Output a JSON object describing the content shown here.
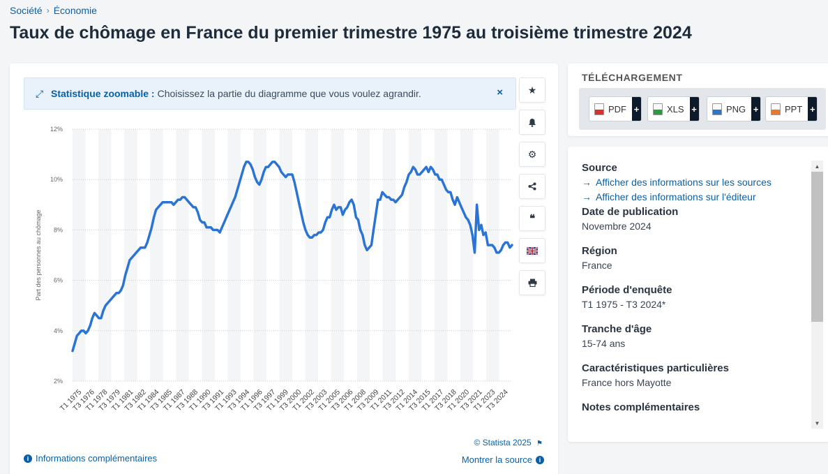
{
  "breadcrumb": [
    "Société",
    "Économie"
  ],
  "title": "Taux de chômage en France du premier trimestre 1975 au troisième trimestre 2024",
  "zoom_banner": {
    "title": "Statistique zoomable :",
    "text": "Choisissez la partie du diagramme que vous voulez agrandir.",
    "close": "×"
  },
  "toolbar": [
    {
      "name": "favorite-button",
      "icon": "star-icon",
      "glyph": "★"
    },
    {
      "name": "notification-button",
      "icon": "bell-icon",
      "glyph": "🔔"
    },
    {
      "name": "settings-button",
      "icon": "gear-icon",
      "glyph": "⚙"
    },
    {
      "name": "share-button",
      "icon": "share-icon",
      "glyph": "share"
    },
    {
      "name": "cite-button",
      "icon": "quote-icon",
      "glyph": "❝"
    },
    {
      "name": "language-button",
      "icon": "uk-flag-icon",
      "glyph": "flag"
    },
    {
      "name": "print-button",
      "icon": "printer-icon",
      "glyph": "⎙"
    }
  ],
  "chart_data": {
    "type": "line",
    "title": "",
    "xlabel": "",
    "ylabel": "Part des personnes au chômage",
    "ylim": [
      2,
      12
    ],
    "yticks": [
      "2%",
      "4%",
      "6%",
      "8%",
      "10%",
      "12%"
    ],
    "grid": true,
    "color": "#2b74d4",
    "x_tick_labels": [
      "T1 1975",
      "T3 1976",
      "T1 1978",
      "T3 1979",
      "T1 1981",
      "T3 1982",
      "T1 1984",
      "T3 1985",
      "T1 1987",
      "T3 1988",
      "T1 1990",
      "T3 1991",
      "T1 1993",
      "T3 1994",
      "T1 1996",
      "T3 1997",
      "T1 1999",
      "T3 2000",
      "T1 2002",
      "T3 2003",
      "T1 2005",
      "T3 2006",
      "T1 2008",
      "T3 2009",
      "T1 2011",
      "T3 2012",
      "T1 2014",
      "T3 2015",
      "T1 2017",
      "T3 2018",
      "T1 2020",
      "T3 2021",
      "T1 2023",
      "T3 2024"
    ],
    "series": [
      {
        "values": [
          3.2,
          3.5,
          3.8,
          3.9,
          4.0,
          4.0,
          3.9,
          4.0,
          4.2,
          4.5,
          4.7,
          4.6,
          4.5,
          4.5,
          4.8,
          5.0,
          5.1,
          5.2,
          5.3,
          5.4,
          5.5,
          5.5,
          5.6,
          5.8,
          6.2,
          6.5,
          6.8,
          6.9,
          7.0,
          7.1,
          7.2,
          7.3,
          7.3,
          7.3,
          7.5,
          7.8,
          8.1,
          8.5,
          8.8,
          8.9,
          9.0,
          9.1,
          9.1,
          9.1,
          9.1,
          9.1,
          9.0,
          9.1,
          9.2,
          9.2,
          9.3,
          9.3,
          9.2,
          9.1,
          9.0,
          8.9,
          8.9,
          8.7,
          8.4,
          8.3,
          8.3,
          8.1,
          8.1,
          8.1,
          8.0,
          8.0,
          8.0,
          7.9,
          8.1,
          8.3,
          8.5,
          8.7,
          8.9,
          9.1,
          9.3,
          9.6,
          9.9,
          10.2,
          10.5,
          10.7,
          10.7,
          10.6,
          10.4,
          10.1,
          9.9,
          9.8,
          10.0,
          10.3,
          10.5,
          10.5,
          10.6,
          10.7,
          10.7,
          10.6,
          10.5,
          10.3,
          10.2,
          10.1,
          10.2,
          10.2,
          10.2,
          9.9,
          9.5,
          9.1,
          8.7,
          8.3,
          8.0,
          7.8,
          7.7,
          7.7,
          7.8,
          7.8,
          7.9,
          7.9,
          8.0,
          8.3,
          8.5,
          8.5,
          8.8,
          9.0,
          8.8,
          8.9,
          8.9,
          8.6,
          8.8,
          8.9,
          9.1,
          9.2,
          9.0,
          8.5,
          8.4,
          8.0,
          7.8,
          7.4,
          7.2,
          7.3,
          7.4,
          8.0,
          8.6,
          9.2,
          9.2,
          9.5,
          9.4,
          9.3,
          9.3,
          9.2,
          9.2,
          9.1,
          9.2,
          9.3,
          9.4,
          9.7,
          9.9,
          10.2,
          10.3,
          10.5,
          10.4,
          10.2,
          10.2,
          10.3,
          10.4,
          10.5,
          10.3,
          10.5,
          10.4,
          10.2,
          10.2,
          10.0,
          10.0,
          9.8,
          9.6,
          9.5,
          9.5,
          9.2,
          9.0,
          9.3,
          9.1,
          8.9,
          8.7,
          8.5,
          8.4,
          8.2,
          7.8,
          7.1,
          9.0,
          8.0,
          8.2,
          7.8,
          7.9,
          7.4,
          7.4,
          7.4,
          7.3,
          7.1,
          7.1,
          7.2,
          7.4,
          7.5,
          7.5,
          7.3,
          7.4
        ]
      }
    ]
  },
  "copyright": "© Statista 2025",
  "links": {
    "info": "Informations complémentaires",
    "source": "Montrer la source"
  },
  "download": {
    "title": "TÉLÉCHARGEMENT",
    "buttons": [
      {
        "label": "PDF",
        "color": "#d9322b"
      },
      {
        "label": "XLS",
        "color": "#2f9a3b"
      },
      {
        "label": "PNG",
        "color": "#2c77c6"
      },
      {
        "label": "PPT",
        "color": "#e9782a"
      }
    ],
    "plus": "+"
  },
  "details": {
    "source_label": "Source",
    "source_links": [
      "Afficher des informations sur les sources",
      "Afficher des informations sur l'éditeur"
    ],
    "date_label": "Date de publication",
    "date_value": "Novembre 2024",
    "region_label": "Région",
    "region_value": "France",
    "period_label": "Période d'enquête",
    "period_value": "T1 1975 - T3 2024*",
    "age_label": "Tranche d'âge",
    "age_value": "15-74 ans",
    "special_label": "Caractéristiques particulières",
    "special_value": "France hors Mayotte",
    "notes_label": "Notes complémentaires"
  }
}
